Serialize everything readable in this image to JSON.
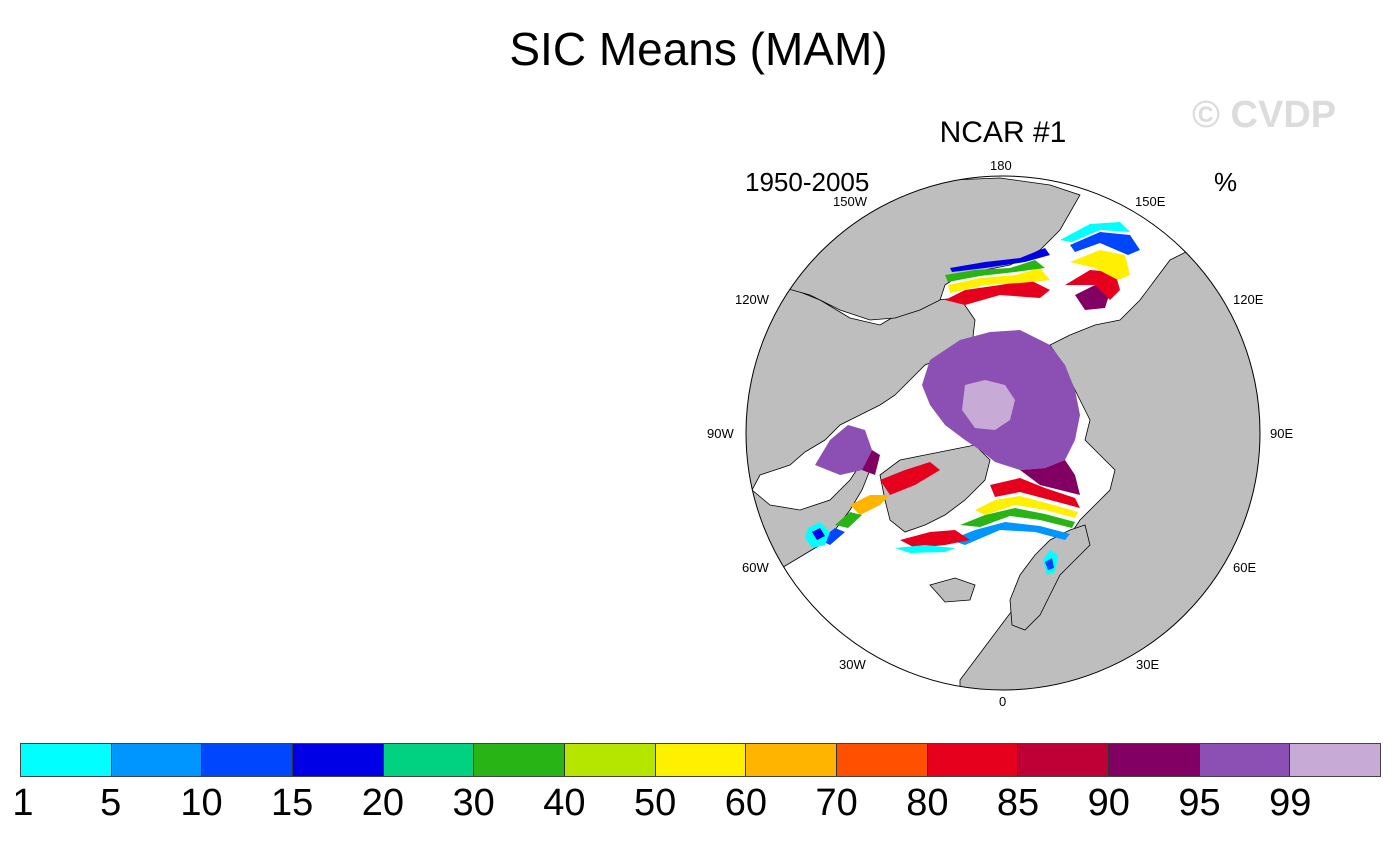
{
  "title": "SIC Means (MAM)",
  "watermark": "© CVDP",
  "map": {
    "title": "NCAR #1",
    "period": "1950-2005",
    "units": "%",
    "longitude_labels": {
      "lon_180": "180",
      "lon_150E": "150E",
      "lon_120E": "120E",
      "lon_90E": "90E",
      "lon_60E": "60E",
      "lon_30E": "30E",
      "lon_0": "0",
      "lon_30W": "30W",
      "lon_60W": "60W",
      "lon_90W": "90W",
      "lon_120W": "120W",
      "lon_150W": "150W"
    },
    "colors": {
      "land": "#bebebe",
      "ocean": "#ffffff",
      "coast": "#000000"
    }
  },
  "colorbar": {
    "labels": [
      "1",
      "5",
      "10",
      "15",
      "20",
      "30",
      "40",
      "50",
      "60",
      "70",
      "80",
      "85",
      "90",
      "95",
      "99"
    ],
    "colors": [
      "#00ffff",
      "#0096ff",
      "#0046ff",
      "#0000e6",
      "#00d282",
      "#28b414",
      "#b4e600",
      "#fff000",
      "#ffb400",
      "#ff5000",
      "#e6001e",
      "#be0037",
      "#820064",
      "#8c50b4",
      "#c8aad7"
    ]
  }
}
